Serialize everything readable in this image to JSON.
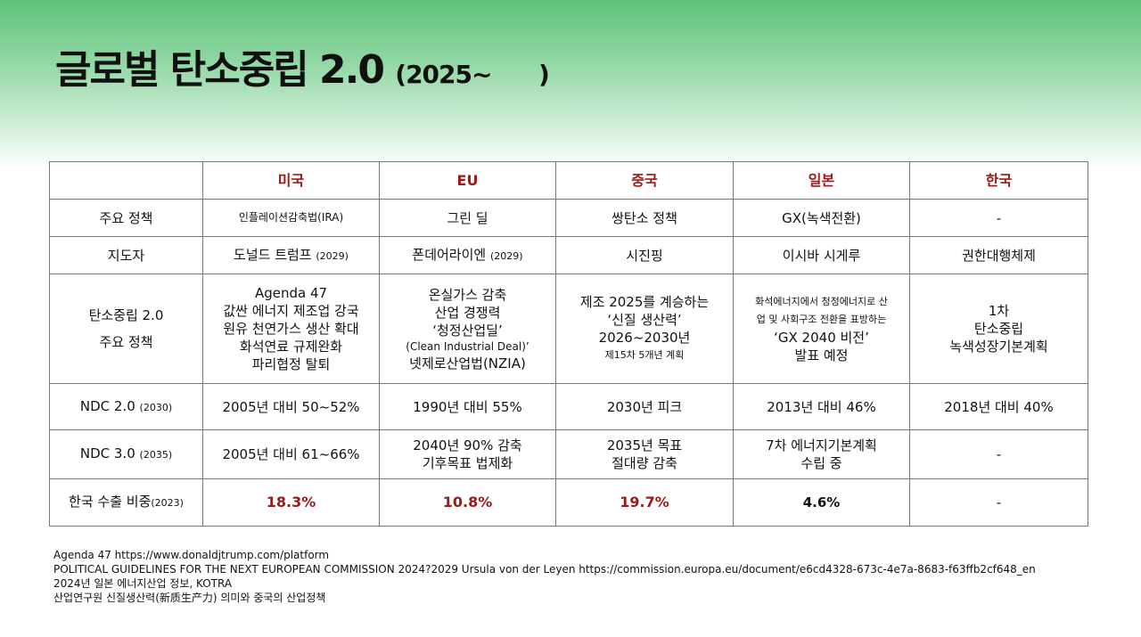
{
  "title": {
    "main": "글로벌 탄소중립 2.0",
    "sub": "(2025~      )"
  },
  "table": {
    "headers": [
      "",
      "미국",
      "EU",
      "중국",
      "일본",
      "한국"
    ],
    "rows": [
      {
        "label": "주요 정책",
        "cells": [
          "인플레이션감축법(IRA)",
          "그린 딜",
          "쌍탄소 정책",
          "GX(녹색전환)",
          "-"
        ]
      },
      {
        "label": "지도자",
        "cells": [
          "도널드 트럼프",
          "폰데어라이엔",
          "시진핑",
          "이시바 시게루",
          "권한대행체제"
        ],
        "notes": [
          "(2029)",
          "(2029)"
        ]
      },
      {
        "label": [
          "탄소중립 2.0",
          "주요 정책"
        ],
        "us": [
          "Agenda 47",
          "값싼 에너지 제조업 강국",
          "원유 천연가스 생산 확대",
          "화석연료 규제완화",
          "파리협정 탈퇴"
        ],
        "eu": [
          "온실가스 감축",
          "산업 경쟁력",
          "‘청정산업딜’",
          "(Clean Industrial Deal)’",
          "넷제로산업법(NZIA)"
        ],
        "cn": [
          "제조 2025를 계승하는",
          "‘신질 생산력’",
          "2026~2030년",
          "제15차 5개년 계획"
        ],
        "jp": [
          "화석에너지에서 청정에너지로 산",
          "업 및 사회구조 전환을 표방하는",
          "‘GX 2040 비전’",
          "발표 예정"
        ],
        "kr": [
          "1차",
          "탄소중립",
          "녹색성장기본계획"
        ]
      },
      {
        "label": "NDC 2.0",
        "label_note": "(2030)",
        "cells": [
          "2005년 대비 50~52%",
          "1990년 대비 55%",
          "2030년 피크",
          "2013년 대비 46%",
          "2018년 대비 40%"
        ]
      },
      {
        "label": "NDC 3.0",
        "label_note": "(2035)",
        "cells": [
          [
            "2005년 대비 61~66%"
          ],
          [
            "2040년 90% 감축",
            "기후목표 법제화"
          ],
          [
            "2035년 목표",
            "절대량 감축"
          ],
          [
            "7차 에너지기본계획",
            "수립 중"
          ],
          [
            "-"
          ]
        ]
      },
      {
        "label": "한국 수출 비중",
        "label_note": "(2023)",
        "cells": [
          "18.3%",
          "10.8%",
          "19.7%",
          "4.6%",
          "-"
        ]
      }
    ]
  },
  "notes": [
    "Agenda 47 https://www.donaldjtrump.com/platform",
    "POLITICAL GUIDELINES FOR THE NEXT EUROPEAN COMMISSION 2024?2029 Ursula von der Leyen https://commission.europa.eu/document/e6cd4328-673c-4e7a-8683-f63ffb2cf648_en",
    "2024년 일본 에너지산업 정보, KOTRA",
    "산업연구원 신질생산력(新质生产力) 의미와 중국의 산업정책"
  ],
  "colors": {
    "accent_red": "#a01818",
    "bg_green": "#5ec27a"
  }
}
